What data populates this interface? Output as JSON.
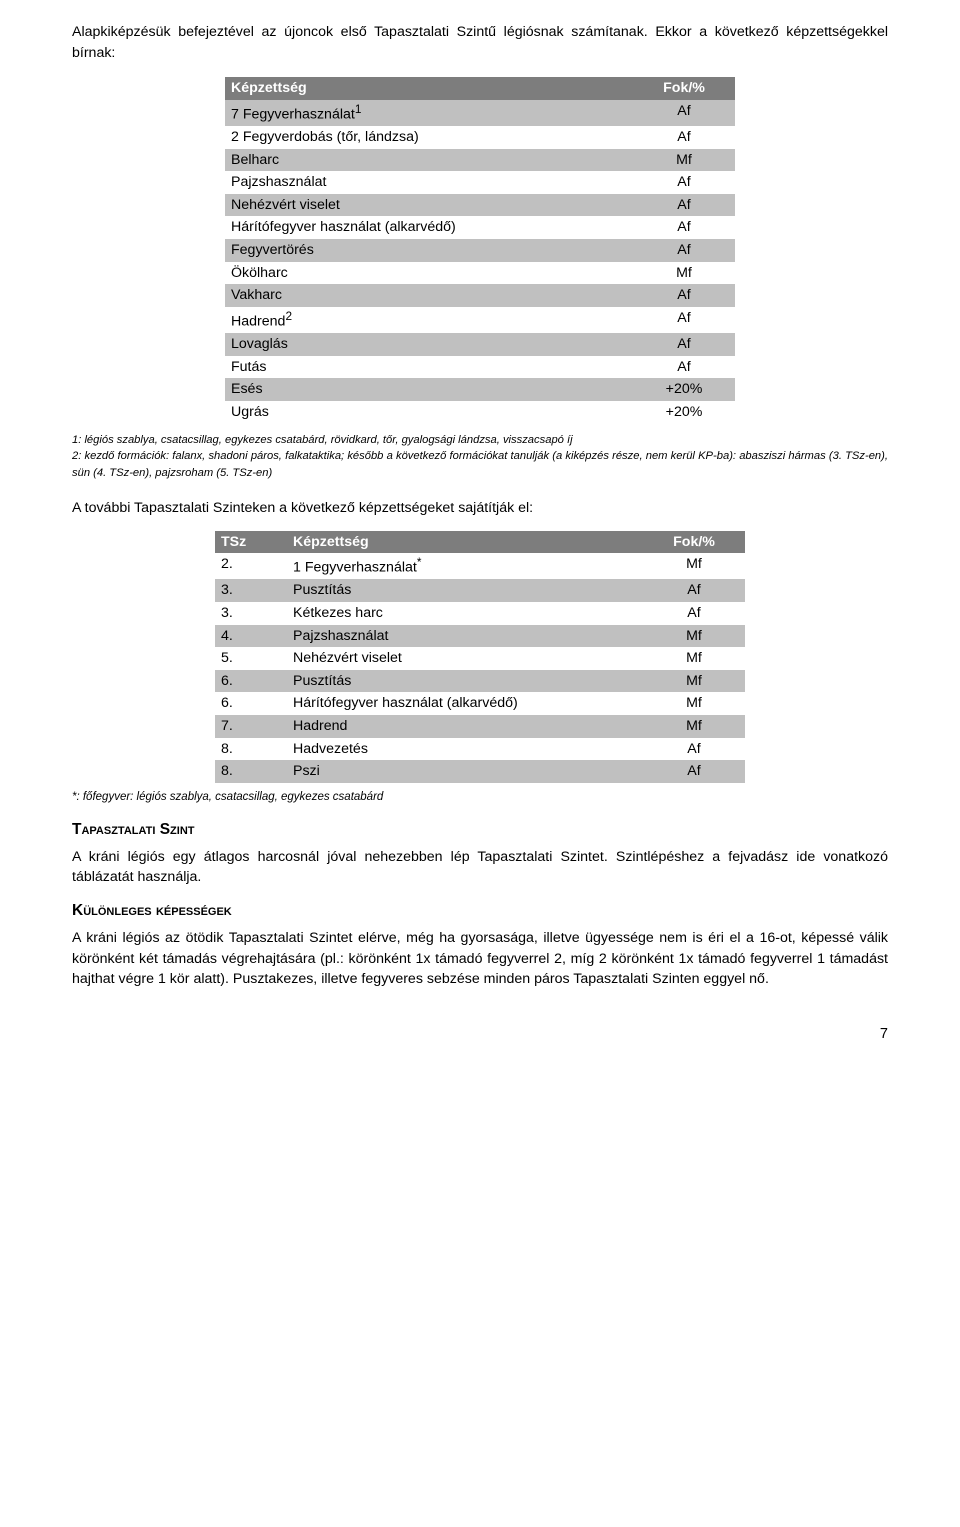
{
  "p_intro": "Alapkiképzésük befejeztével az újoncok első Tapasztalati Szintű légiósnak számítanak. Ekkor a következő képzettségekkel bírnak:",
  "table1": {
    "hdr_name": "Képzettség",
    "hdr_val": "Fok/%",
    "rows": [
      {
        "band": true,
        "name": "7 Fegyverhasználat",
        "sup": "1",
        "val": "Af"
      },
      {
        "band": false,
        "name": "2 Fegyverdobás (tőr, lándzsa)",
        "val": "Af"
      },
      {
        "band": true,
        "name": "Belharc",
        "val": "Mf"
      },
      {
        "band": false,
        "name": "Pajzshasználat",
        "val": "Af"
      },
      {
        "band": true,
        "name": "Nehézvért viselet",
        "val": "Af"
      },
      {
        "band": false,
        "name": "Hárítófegyver használat (alkarvédő)",
        "val": "Af"
      },
      {
        "band": true,
        "name": "Fegyvertörés",
        "val": "Af"
      },
      {
        "band": false,
        "name": "Ökölharc",
        "val": "Mf"
      },
      {
        "band": true,
        "name": "Vakharc",
        "val": "Af"
      },
      {
        "band": false,
        "name": "Hadrend",
        "sup": "2",
        "val": "Af"
      },
      {
        "band": true,
        "name": "Lovaglás",
        "val": "Af"
      },
      {
        "band": false,
        "name": "Futás",
        "val": "Af"
      },
      {
        "band": true,
        "name": "Esés",
        "val": "+20%"
      },
      {
        "band": false,
        "name": "Ugrás",
        "val": "+20%"
      }
    ]
  },
  "foot1_a": "1: légiós szablya, csatacsillag, egykezes csatabárd, rövidkard, tőr, gyalogsági lándzsa, visszacsapó íj",
  "foot1_b": "2: kezdő formációk: falanx, shadoni páros, falkataktika; később a következő formációkat tanulják (a kiképzés része, nem kerül KP-ba): abasziszi hármas (3. TSz-en), sün (4. TSz-en), pajzsroham (5. TSz-en)",
  "p_mid": "A további Tapasztalati Szinteken a következő képzettségeket sajátítják el:",
  "table2": {
    "hdr_tsz": "TSz",
    "hdr_name": "Képzettség",
    "hdr_val": "Fok/%",
    "rows": [
      {
        "band": false,
        "tsz": "2.",
        "name": "1 Fegyverhasználat",
        "sup": "*",
        "val": "Mf"
      },
      {
        "band": true,
        "tsz": "3.",
        "name": "Pusztítás",
        "val": "Af"
      },
      {
        "band": false,
        "tsz": "3.",
        "name": "Kétkezes harc",
        "val": "Af"
      },
      {
        "band": true,
        "tsz": "4.",
        "name": "Pajzshasználat",
        "val": "Mf"
      },
      {
        "band": false,
        "tsz": "5.",
        "name": "Nehézvért viselet",
        "val": "Mf"
      },
      {
        "band": true,
        "tsz": "6.",
        "name": "Pusztítás",
        "val": "Mf"
      },
      {
        "band": false,
        "tsz": "6.",
        "name": "Hárítófegyver használat (alkarvédő)",
        "val": "Mf"
      },
      {
        "band": true,
        "tsz": "7.",
        "name": "Hadrend",
        "val": "Mf"
      },
      {
        "band": false,
        "tsz": "8.",
        "name": "Hadvezetés",
        "val": "Af"
      },
      {
        "band": true,
        "tsz": "8.",
        "name": "Pszi",
        "val": "Af"
      }
    ]
  },
  "foot2": "*: főfegyver: légiós szablya, csatacsillag, egykezes csatabárd",
  "h_tapasz": "Tapasztalati Szint",
  "p_tapasz": "A kráni légiós egy átlagos harcosnál jóval nehezebben lép Tapasztalati Szintet. Szintlépéshez a fejvadász ide vonatkozó táblázatát használja.",
  "h_kul": "Különleges képességek",
  "p_kul": "A kráni légiós az ötödik Tapasztalati Szintet elérve, még ha gyorsasága, illetve ügyessége nem is éri el a 16-ot, képessé válik körönként két támadás végrehajtására (pl.: körönként 1x támadó fegyverrel 2, míg 2 körönként 1x támadó fegyverrel 1 támadást hajthat végre 1 kör alatt). Pusztakezes, illetve fegyveres sebzése minden páros Tapasztalati Szinten eggyel nő.",
  "pagenum": "7"
}
